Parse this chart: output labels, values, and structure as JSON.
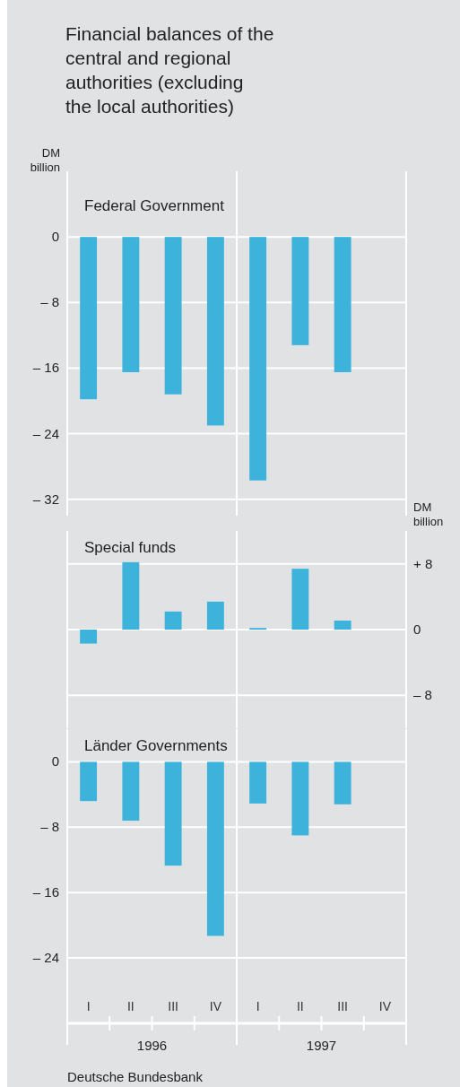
{
  "chart_data": [
    {
      "type": "bar",
      "title": "Financial balances of the central and regional authorities (excluding the local authorities)",
      "subtitle": "Federal Government",
      "ylabel": "DM billion",
      "values": [
        -19.8,
        -16.5,
        -19.2,
        -23.0,
        -29.7,
        -13.2,
        -16.5,
        null
      ],
      "color": "#3db3db",
      "ylim": [
        -34,
        8
      ],
      "yticks": [
        0,
        {
          "value": -8,
          "label": "– 8"
        },
        {
          "value": -16,
          "label": "– 16"
        },
        {
          "value": -24,
          "label": "– 24"
        },
        {
          "value": -32,
          "label": "– 32"
        }
      ],
      "grid": "y",
      "tick_labels": "y"
    },
    {
      "type": "bar",
      "title": "Special funds",
      "y2label": "DM billion",
      "series": [
        {
          "color": "#3db3db",
          "axis": "y2",
          "values": [
            -1.7,
            8.2,
            2.2,
            3.4,
            0.2,
            7.4,
            1.1,
            null
          ]
        }
      ],
      "y2lim": [
        -12,
        12
      ],
      "y2ticks": [
        {
          "value": 8,
          "label": "+ 8"
        },
        0,
        {
          "value": -8,
          "label": "– 8"
        }
      ],
      "grid": "y",
      "tick_labels": "y"
    },
    {
      "type": "bar",
      "title": "Länder Governments",
      "categories": [
        "I",
        "II",
        "III",
        "IV",
        "I",
        "II",
        "III",
        "IV"
      ],
      "values": [
        -4.8,
        -7.2,
        -12.7,
        -21.3,
        -5.1,
        -9.0,
        -5.2,
        null
      ],
      "color": "#3db3db",
      "ylim": [
        -32,
        4
      ],
      "yticks": [
        0,
        {
          "value": -8,
          "label": "– 8"
        },
        {
          "value": -16,
          "label": "– 16"
        },
        {
          "value": -24,
          "label": "– 24"
        }
      ],
      "grid": "y",
      "annotations": [
        "1996",
        "1997",
        "Deutsche Bundesbank"
      ]
    }
  ]
}
